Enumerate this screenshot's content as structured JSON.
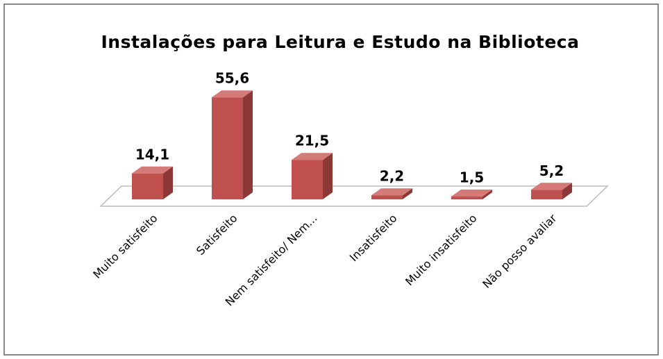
{
  "chart_data": {
    "type": "bar3d",
    "title": "Instalações para Leitura e Estudo na Biblioteca",
    "categories": [
      "Muito satisfeito",
      "Satisfeito",
      "Nem satisfeito/ Nem...",
      "Insatisfeito",
      "Muito insatisfeito",
      "Não posso avaliar"
    ],
    "values": [
      14.1,
      55.6,
      21.5,
      2.2,
      1.5,
      5.2
    ],
    "value_labels": [
      "14,1",
      "55,6",
      "21,5",
      "2,2",
      "1,5",
      "5,2"
    ],
    "color": "#c0504d"
  }
}
